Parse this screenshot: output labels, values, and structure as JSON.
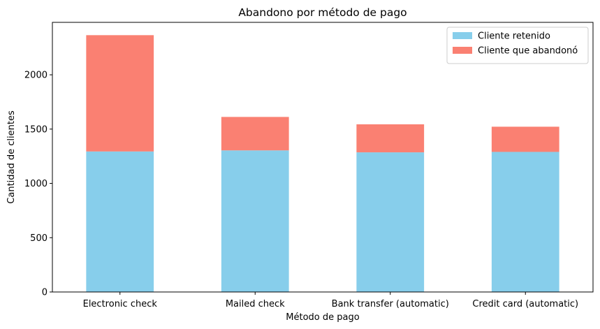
{
  "chart_data": {
    "type": "bar",
    "stacked": true,
    "title": "Abandono por método de pago",
    "xlabel": "Método de pago",
    "ylabel": "Cantidad de clientes",
    "categories": [
      "Electronic check",
      "Mailed check",
      "Bank transfer (automatic)",
      "Credit card (automatic)"
    ],
    "series": [
      {
        "name": "Cliente retenido",
        "color": "#87CEEB",
        "values": [
          1294,
          1304,
          1286,
          1290
        ]
      },
      {
        "name": "Cliente que abandonó",
        "color": "#FA8072",
        "values": [
          1071,
          308,
          258,
          232
        ]
      }
    ],
    "yticks": [
      0,
      500,
      1000,
      1500,
      2000
    ],
    "ylim": [
      0,
      2483
    ],
    "grid": false,
    "legend_position": "top-right"
  }
}
